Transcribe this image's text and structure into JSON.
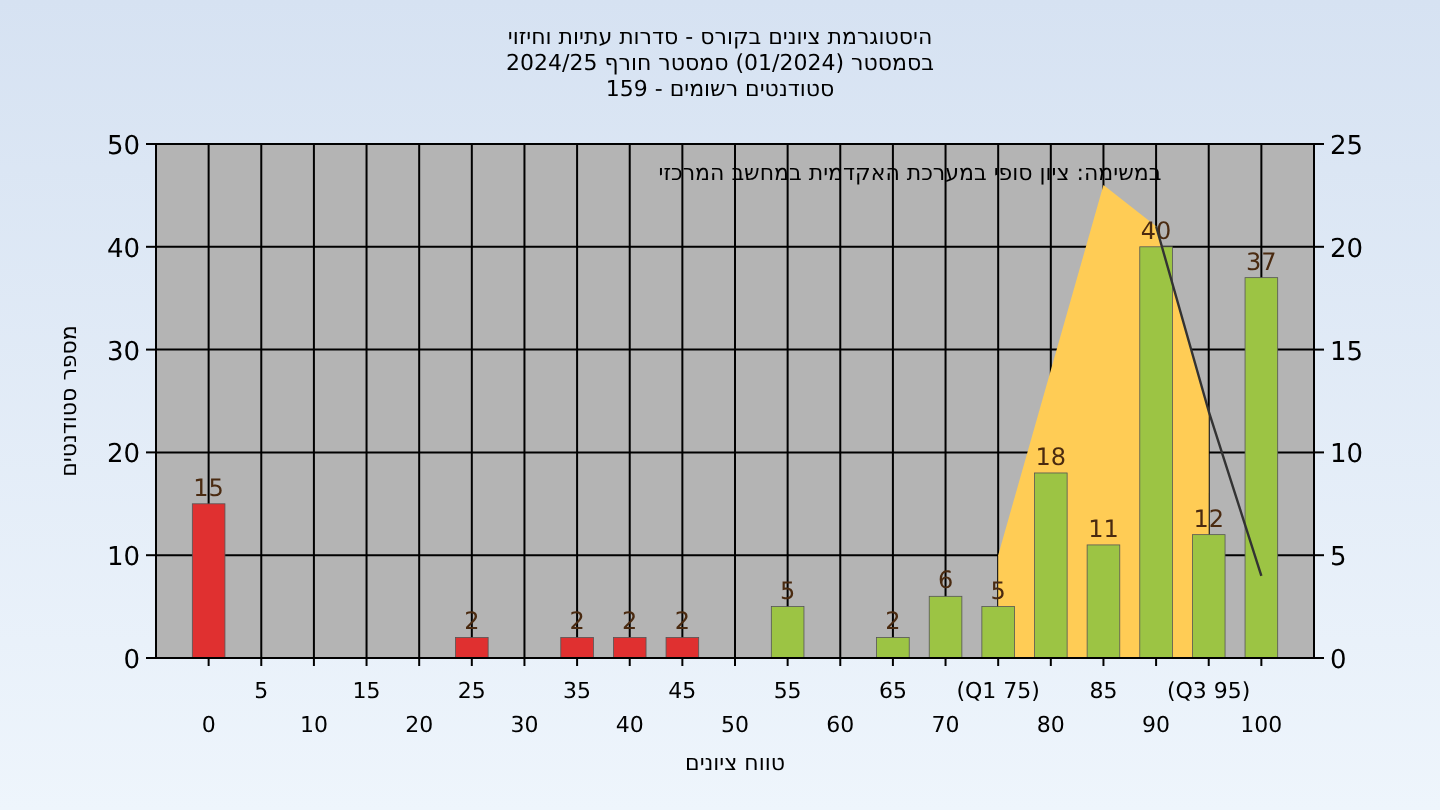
{
  "chart_data": {
    "type": "bar",
    "title": "היסטוגרמת ציונים בקורס - סדרות עתיות וחיזוי",
    "subtitle": "בסמסטר  (01/2024)  סמסטר חורף 2024/25\nסטודנטים רשומים - 159",
    "xlabel": "טווח ציונים",
    "ylabel": "מספר סטודנטים",
    "annotations": [
      "במשימה: ציון סופי במערכת האקדמית במחשב המרכזי"
    ],
    "categories": [
      "0",
      "5",
      "10",
      "15",
      "20",
      "25",
      "30",
      "35",
      "40",
      "45",
      "50",
      "55",
      "60",
      "65",
      "70",
      "(Q1 75)",
      "80",
      "85",
      "90",
      "(Q3 95)",
      "100"
    ],
    "series": [
      {
        "type": "area",
        "axis": "y2",
        "color": "#ffcc55",
        "values": [
          null,
          null,
          null,
          null,
          null,
          null,
          null,
          null,
          null,
          null,
          null,
          null,
          null,
          null,
          null,
          5,
          null,
          23,
          21,
          12,
          null
        ]
      },
      {
        "colors": [
          "#e03030",
          "#e03030",
          "#e03030",
          "#e03030",
          "#e03030",
          "#e03030",
          "#e03030",
          "#e03030",
          "#e03030",
          "#e03030",
          "#e03030",
          "#9cc444",
          "#9cc444",
          "#9cc444",
          "#9cc444",
          "#9cc444",
          "#9cc444",
          "#9cc444",
          "#9cc444",
          "#9cc444",
          "#9cc444"
        ],
        "values": [
          15,
          0,
          0,
          0,
          0,
          2,
          0,
          2,
          2,
          2,
          0,
          5,
          0,
          2,
          6,
          5,
          18,
          11,
          40,
          12,
          37
        ],
        "value_labels": [
          "15",
          null,
          null,
          null,
          null,
          "2",
          null,
          "2",
          "2",
          "2",
          null,
          "5",
          null,
          "2",
          "6",
          "5",
          "18",
          "11",
          "40",
          "12",
          "37"
        ]
      },
      {
        "type": "line",
        "axis": "y2",
        "color": "#333333",
        "values": [
          null,
          null,
          null,
          null,
          null,
          null,
          null,
          null,
          null,
          null,
          null,
          null,
          null,
          null,
          null,
          null,
          null,
          null,
          21,
          12,
          4
        ]
      }
    ],
    "ylim": [
      0,
      50
    ],
    "yticks": [
      0,
      10,
      20,
      30,
      40,
      50
    ],
    "y2lim": [
      0,
      25
    ],
    "y2ticks": [
      0,
      5,
      10,
      15,
      20,
      25
    ],
    "grid": true
  }
}
